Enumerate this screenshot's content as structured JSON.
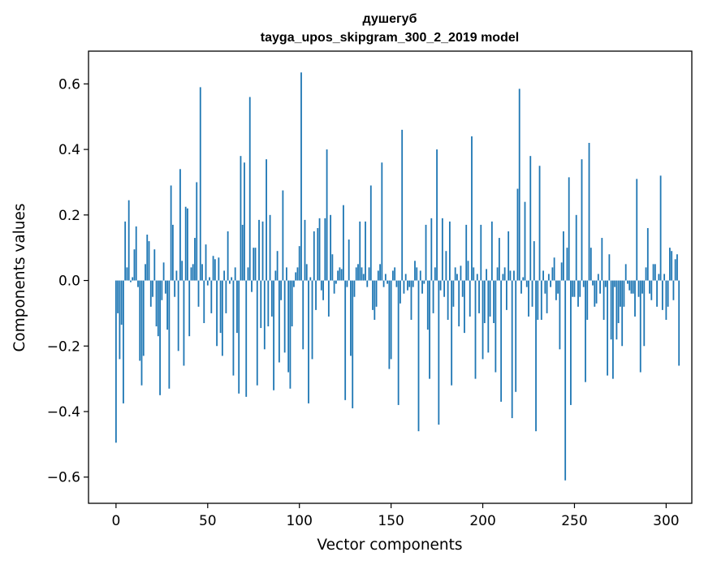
{
  "chart_data": {
    "type": "bar",
    "title": "душегуб",
    "subtitle": "tayga_upos_skipgram_300_2_2019 model",
    "xlabel": "Vector components",
    "ylabel": "Components values",
    "xlim": [
      -15,
      314
    ],
    "ylim": [
      -0.68,
      0.7
    ],
    "xticks": [
      0,
      50,
      100,
      150,
      200,
      250,
      300
    ],
    "yticks": [
      -0.6,
      -0.4,
      -0.2,
      0.0,
      0.2,
      0.4,
      0.6
    ],
    "ytick_labels": [
      "−0.6",
      "−0.4",
      "−0.2",
      "0.0",
      "0.2",
      "0.4",
      "0.6"
    ],
    "bar_color": "#1f77b4",
    "values": [
      -0.495,
      -0.1,
      -0.24,
      -0.135,
      -0.375,
      0.18,
      0.04,
      0.245,
      -0.005,
      0.01,
      0.095,
      0.165,
      -0.02,
      -0.245,
      -0.32,
      -0.23,
      0.05,
      0.14,
      0.12,
      -0.08,
      -0.05,
      0.095,
      -0.14,
      -0.17,
      -0.35,
      -0.06,
      0.055,
      -0.04,
      -0.15,
      -0.33,
      0.29,
      0.17,
      -0.05,
      0.03,
      -0.215,
      0.34,
      0.06,
      -0.26,
      0.225,
      0.22,
      -0.17,
      0.04,
      0.05,
      0.13,
      0.3,
      -0.08,
      0.59,
      0.05,
      -0.13,
      0.11,
      -0.015,
      0.01,
      -0.1,
      0.075,
      0.065,
      -0.2,
      0.07,
      -0.16,
      -0.23,
      0.03,
      -0.1,
      0.15,
      -0.01,
      0.01,
      -0.29,
      0.04,
      -0.16,
      -0.345,
      0.38,
      0.17,
      0.36,
      -0.355,
      0.04,
      0.56,
      -0.035,
      0.1,
      0.1,
      -0.32,
      0.185,
      -0.145,
      0.18,
      -0.21,
      0.37,
      -0.14,
      0.2,
      -0.11,
      -0.335,
      0.03,
      0.09,
      -0.25,
      -0.06,
      0.275,
      -0.22,
      0.04,
      -0.28,
      -0.33,
      -0.14,
      -0.02,
      0.025,
      0.04,
      0.105,
      0.635,
      -0.21,
      0.185,
      0.05,
      -0.375,
      0.01,
      -0.24,
      0.15,
      -0.09,
      0.16,
      0.19,
      -0.03,
      -0.06,
      0.19,
      0.4,
      -0.11,
      0.2,
      0.08,
      -0.04,
      -0.01,
      0.03,
      0.04,
      0.035,
      0.23,
      -0.365,
      -0.02,
      0.125,
      -0.23,
      -0.39,
      -0.05,
      0.04,
      0.05,
      0.18,
      0.04,
      0.02,
      0.18,
      -0.02,
      0.04,
      0.29,
      -0.09,
      -0.12,
      -0.08,
      0.03,
      0.05,
      0.36,
      -0.02,
      0.02,
      -0.01,
      -0.27,
      -0.24,
      0.03,
      0.04,
      -0.02,
      -0.38,
      -0.07,
      0.46,
      -0.04,
      0.02,
      -0.03,
      -0.02,
      -0.12,
      -0.02,
      0.06,
      0.04,
      -0.46,
      0.03,
      -0.04,
      -0.01,
      0.17,
      -0.15,
      -0.3,
      0.19,
      -0.1,
      0.04,
      0.4,
      -0.44,
      -0.03,
      0.19,
      -0.05,
      0.09,
      -0.12,
      0.18,
      -0.32,
      -0.08,
      0.04,
      0.02,
      -0.14,
      0.045,
      -0.05,
      -0.16,
      0.17,
      0.06,
      -0.11,
      0.44,
      0.04,
      -0.3,
      0.02,
      -0.1,
      0.17,
      -0.24,
      -0.13,
      0.035,
      -0.22,
      -0.11,
      0.18,
      -0.13,
      -0.28,
      0.04,
      0.13,
      -0.37,
      0.02,
      0.04,
      -0.09,
      0.15,
      0.03,
      -0.42,
      0.03,
      -0.34,
      0.28,
      0.585,
      -0.04,
      0.01,
      0.24,
      -0.02,
      -0.11,
      0.38,
      -0.08,
      0.12,
      -0.46,
      -0.12,
      0.35,
      -0.12,
      0.03,
      -0.04,
      -0.1,
      0.02,
      -0.02,
      0.04,
      0.07,
      -0.06,
      -0.04,
      -0.21,
      0.055,
      0.15,
      -0.61,
      0.1,
      0.315,
      -0.38,
      -0.05,
      -0.05,
      0.2,
      -0.08,
      -0.05,
      0.37,
      -0.02,
      -0.31,
      -0.12,
      0.42,
      0.1,
      -0.015,
      -0.08,
      -0.07,
      0.02,
      -0.04,
      0.13,
      -0.12,
      -0.02,
      -0.29,
      0.08,
      -0.18,
      -0.3,
      -0.02,
      -0.18,
      -0.13,
      -0.08,
      -0.2,
      -0.08,
      0.05,
      -0.01,
      -0.03,
      -0.04,
      -0.04,
      -0.11,
      0.31,
      -0.05,
      -0.28,
      -0.04,
      -0.2,
      0.04,
      0.16,
      -0.04,
      -0.06,
      0.05,
      0.05,
      -0.08,
      0.02,
      0.32,
      -0.09,
      0.02,
      -0.12,
      -0.08,
      0.1,
      0.09,
      -0.06,
      0.065,
      0.08,
      -0.26
    ]
  }
}
